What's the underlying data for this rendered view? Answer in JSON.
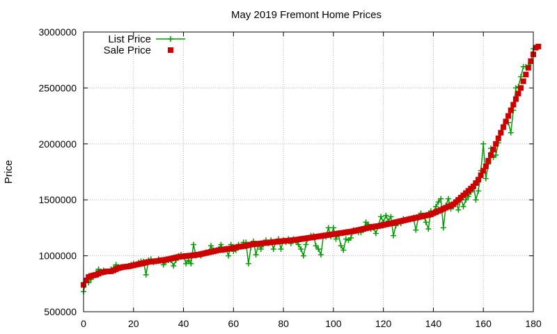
{
  "chart_data": {
    "type": "line",
    "title": "May 2019 Fremont Home Prices",
    "xlabel": "",
    "ylabel": "Price",
    "xlim": [
      0,
      180
    ],
    "ylim": [
      500000,
      3000000
    ],
    "xticks": [
      0,
      20,
      40,
      60,
      80,
      100,
      120,
      140,
      160,
      180
    ],
    "yticks": [
      500000,
      1000000,
      1500000,
      2000000,
      2500000,
      3000000
    ],
    "grid": true,
    "legend_position": "top-left",
    "series": [
      {
        "name": "List Price",
        "style": "line-with-plus-markers",
        "color": "#009900",
        "values": [
          680000,
          780000,
          760000,
          790000,
          830000,
          850000,
          880000,
          860000,
          870000,
          860000,
          860000,
          880000,
          890000,
          920000,
          900000,
          900000,
          900000,
          900000,
          910000,
          920000,
          930000,
          920000,
          940000,
          950000,
          950000,
          830000,
          960000,
          970000,
          940000,
          950000,
          970000,
          960000,
          920000,
          950000,
          960000,
          960000,
          910000,
          960000,
          1000000,
          1010000,
          1000000,
          930000,
          960000,
          930000,
          1100000,
          1000000,
          1010000,
          1000000,
          1020000,
          1030000,
          1030000,
          1090000,
          1050000,
          1040000,
          1060000,
          1100000,
          1050000,
          1060000,
          1000000,
          1100000,
          1040000,
          1050000,
          1100000,
          1080000,
          1120000,
          1120000,
          930000,
          1080000,
          1130000,
          1010000,
          1100000,
          1060000,
          1100000,
          1140000,
          1110000,
          1140000,
          1060000,
          1130000,
          1150000,
          1060000,
          1140000,
          1120000,
          1150000,
          1110000,
          1150000,
          1130000,
          1100000,
          1060000,
          1000000,
          1100000,
          1160000,
          1180000,
          1180000,
          1090000,
          1060000,
          1010000,
          1180000,
          1170000,
          1250000,
          1170000,
          1250000,
          1150000,
          1190000,
          1090000,
          1050000,
          1150000,
          1140000,
          1160000,
          1230000,
          1220000,
          1210000,
          1210000,
          1230000,
          1300000,
          1280000,
          1240000,
          1250000,
          1200000,
          1270000,
          1350000,
          1300000,
          1360000,
          1310000,
          1350000,
          1180000,
          1270000,
          1310000,
          1290000,
          1330000,
          1320000,
          1330000,
          1330000,
          1340000,
          1230000,
          1340000,
          1380000,
          1360000,
          1300000,
          1240000,
          1400000,
          1390000,
          1440000,
          1480000,
          1510000,
          1250000,
          1450000,
          1510000,
          1420000,
          1440000,
          1490000,
          1410000,
          1520000,
          1440000,
          1500000,
          1530000,
          1570000,
          1630000,
          1500000,
          1580000,
          1760000,
          2000000,
          1690000,
          1820000,
          1960000,
          1880000,
          1900000,
          2010000,
          2100000,
          2160000,
          2200000,
          2190000,
          2100000,
          2300000,
          2500000,
          2510000,
          2600000,
          2690000,
          2690000,
          2700000,
          2720000,
          2850000,
          2860000
        ]
      },
      {
        "name": "Sale Price",
        "style": "square-markers",
        "color": "#cc0000",
        "values": [
          740000,
          780000,
          810000,
          820000,
          825000,
          830000,
          840000,
          850000,
          855000,
          860000,
          860000,
          862000,
          870000,
          880000,
          890000,
          895000,
          900000,
          903000,
          905000,
          910000,
          915000,
          920000,
          925000,
          930000,
          935000,
          940000,
          945000,
          948000,
          950000,
          952000,
          955000,
          960000,
          962000,
          965000,
          970000,
          975000,
          980000,
          985000,
          990000,
          993000,
          995000,
          998000,
          1000000,
          1002000,
          1005000,
          1008000,
          1010000,
          1015000,
          1020000,
          1025000,
          1030000,
          1035000,
          1040000,
          1045000,
          1050000,
          1052000,
          1055000,
          1060000,
          1063000,
          1065000,
          1070000,
          1075000,
          1080000,
          1083000,
          1086000,
          1090000,
          1095000,
          1100000,
          1103000,
          1105000,
          1108000,
          1110000,
          1113000,
          1115000,
          1118000,
          1120000,
          1123000,
          1125000,
          1128000,
          1130000,
          1132000,
          1134000,
          1136000,
          1138000,
          1140000,
          1143000,
          1146000,
          1150000,
          1153000,
          1156000,
          1160000,
          1163000,
          1166000,
          1170000,
          1173000,
          1176000,
          1180000,
          1183000,
          1186000,
          1190000,
          1193000,
          1196000,
          1200000,
          1203000,
          1206000,
          1210000,
          1213000,
          1216000,
          1220000,
          1225000,
          1230000,
          1235000,
          1240000,
          1245000,
          1250000,
          1255000,
          1260000,
          1263000,
          1266000,
          1270000,
          1275000,
          1280000,
          1285000,
          1290000,
          1295000,
          1300000,
          1305000,
          1310000,
          1315000,
          1320000,
          1325000,
          1330000,
          1335000,
          1340000,
          1345000,
          1350000,
          1355000,
          1360000,
          1365000,
          1370000,
          1380000,
          1390000,
          1400000,
          1410000,
          1420000,
          1430000,
          1440000,
          1450000,
          1460000,
          1480000,
          1500000,
          1520000,
          1540000,
          1560000,
          1580000,
          1600000,
          1620000,
          1650000,
          1680000,
          1720000,
          1760000,
          1800000,
          1850000,
          1900000,
          1950000,
          2000000,
          2050000,
          2100000,
          2150000,
          2200000,
          2250000,
          2300000,
          2350000,
          2400000,
          2450000,
          2500000,
          2560000,
          2620000,
          2680000,
          2740000,
          2800000,
          2860000,
          2870000
        ]
      }
    ]
  }
}
